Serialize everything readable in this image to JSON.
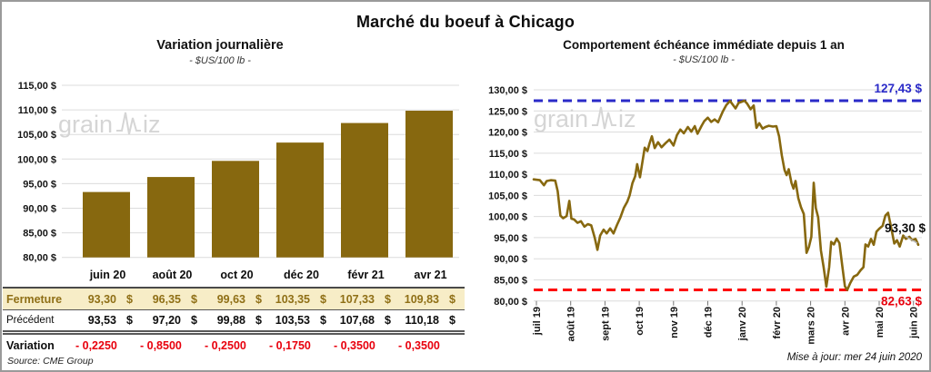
{
  "title": "Marché du boeuf à Chicago",
  "watermark": {
    "part1": "grain",
    "part2": "iz"
  },
  "colors": {
    "gold": "#87680f",
    "cream_bg": "#f7edc7",
    "fermeture_text": "#8f6f16",
    "variation_red": "#e8000d",
    "high_blue": "#2a2ac8",
    "low_red": "#fe0000",
    "grid": "#dcdcdc",
    "frame_border": "#9a9a9a",
    "watermark_gray": "#d5d5d5"
  },
  "chart_data": [
    {
      "type": "bar",
      "title": "Variation journalière",
      "subtitle": "- $US/100 lb -",
      "categories": [
        "juin 20",
        "août 20",
        "oct 20",
        "déc 20",
        "févr 21",
        "avr 21"
      ],
      "values": [
        93.3,
        96.35,
        99.63,
        103.35,
        107.33,
        109.83
      ],
      "ylim": [
        80,
        115
      ],
      "ytick_labels": [
        "115,00 $",
        "110,00 $",
        "105,00 $",
        "100,00 $",
        "95,00 $",
        "90,00 $",
        "85,00 $",
        "80,00 $"
      ],
      "grid": true,
      "legend": "none"
    },
    {
      "type": "line",
      "title": "Comportement échéance immédiate depuis 1 an",
      "subtitle": "- $US/100 lb -",
      "x_labels": [
        "juil 19",
        "août 19",
        "sept 19",
        "oct 19",
        "nov 19",
        "déc 19",
        "janv 20",
        "févr 20",
        "mars 20",
        "avr 20",
        "mai 20",
        "juin 20"
      ],
      "ylim": [
        80,
        130
      ],
      "ytick_labels": [
        "130,00 $",
        "125,00 $",
        "120,00 $",
        "115,00 $",
        "110,00 $",
        "105,00 $",
        "100,00 $",
        "95,00 $",
        "90,00 $",
        "85,00 $",
        "80,00 $"
      ],
      "high_line": {
        "value": 127.43,
        "label": "127,43 $"
      },
      "low_line": {
        "value": 82.63,
        "label": "82,63 $"
      },
      "last_point_label": {
        "value": 93.3,
        "label": "93,30 $"
      },
      "grid": true,
      "legend": "none",
      "points": [
        [
          -0.08,
          108.8
        ],
        [
          0.1,
          108.6
        ],
        [
          0.22,
          107.4
        ],
        [
          0.3,
          108.4
        ],
        [
          0.42,
          108.6
        ],
        [
          0.55,
          108.5
        ],
        [
          0.62,
          106.0
        ],
        [
          0.7,
          100.2
        ],
        [
          0.78,
          99.6
        ],
        [
          0.88,
          100.1
        ],
        [
          0.96,
          103.7
        ],
        [
          1.02,
          99.5
        ],
        [
          1.1,
          99.3
        ],
        [
          1.2,
          98.5
        ],
        [
          1.3,
          98.9
        ],
        [
          1.4,
          97.6
        ],
        [
          1.5,
          98.2
        ],
        [
          1.6,
          97.9
        ],
        [
          1.7,
          95.0
        ],
        [
          1.78,
          92.1
        ],
        [
          1.86,
          95.5
        ],
        [
          1.96,
          96.9
        ],
        [
          2.05,
          96.0
        ],
        [
          2.15,
          97.2
        ],
        [
          2.25,
          96.0
        ],
        [
          2.35,
          98.0
        ],
        [
          2.45,
          99.8
        ],
        [
          2.55,
          102.0
        ],
        [
          2.65,
          103.5
        ],
        [
          2.72,
          105.0
        ],
        [
          2.8,
          107.9
        ],
        [
          2.88,
          109.5
        ],
        [
          2.94,
          112.4
        ],
        [
          3.02,
          109.3
        ],
        [
          3.16,
          116.3
        ],
        [
          3.24,
          115.5
        ],
        [
          3.3,
          117.3
        ],
        [
          3.37,
          119.0
        ],
        [
          3.45,
          116.2
        ],
        [
          3.55,
          117.6
        ],
        [
          3.65,
          116.4
        ],
        [
          3.77,
          117.4
        ],
        [
          3.88,
          118.2
        ],
        [
          4.0,
          116.8
        ],
        [
          4.1,
          119.3
        ],
        [
          4.2,
          120.6
        ],
        [
          4.3,
          119.7
        ],
        [
          4.42,
          121.2
        ],
        [
          4.52,
          120.1
        ],
        [
          4.62,
          121.4
        ],
        [
          4.7,
          119.6
        ],
        [
          4.82,
          121.5
        ],
        [
          4.9,
          122.6
        ],
        [
          5.0,
          123.4
        ],
        [
          5.1,
          122.4
        ],
        [
          5.2,
          123.0
        ],
        [
          5.3,
          122.3
        ],
        [
          5.44,
          124.9
        ],
        [
          5.54,
          126.4
        ],
        [
          5.65,
          127.35
        ],
        [
          5.81,
          125.6
        ],
        [
          5.9,
          126.9
        ],
        [
          6.0,
          127.2
        ],
        [
          6.07,
          127.45
        ],
        [
          6.15,
          126.7
        ],
        [
          6.25,
          125.4
        ],
        [
          6.34,
          126.3
        ],
        [
          6.42,
          121.0
        ],
        [
          6.5,
          122.1
        ],
        [
          6.6,
          120.8
        ],
        [
          6.68,
          121.2
        ],
        [
          6.78,
          121.5
        ],
        [
          6.9,
          121.3
        ],
        [
          7.0,
          121.4
        ],
        [
          7.08,
          119.0
        ],
        [
          7.16,
          114.5
        ],
        [
          7.24,
          111.0
        ],
        [
          7.3,
          109.8
        ],
        [
          7.36,
          111.2
        ],
        [
          7.44,
          108.0
        ],
        [
          7.5,
          106.6
        ],
        [
          7.56,
          108.4
        ],
        [
          7.64,
          104.4
        ],
        [
          7.72,
          102.2
        ],
        [
          7.8,
          100.6
        ],
        [
          7.88,
          91.4
        ],
        [
          7.95,
          92.8
        ],
        [
          8.02,
          95.2
        ],
        [
          8.09,
          108.0
        ],
        [
          8.15,
          102.0
        ],
        [
          8.22,
          99.8
        ],
        [
          8.3,
          92.0
        ],
        [
          8.38,
          88.0
        ],
        [
          8.46,
          83.4
        ],
        [
          8.54,
          88.0
        ],
        [
          8.6,
          94.0
        ],
        [
          8.68,
          93.4
        ],
        [
          8.76,
          94.8
        ],
        [
          8.84,
          93.7
        ],
        [
          8.92,
          88.5
        ],
        [
          9.0,
          83.5
        ],
        [
          9.07,
          82.63
        ],
        [
          9.16,
          84.3
        ],
        [
          9.26,
          85.8
        ],
        [
          9.36,
          86.2
        ],
        [
          9.46,
          87.3
        ],
        [
          9.54,
          88.0
        ],
        [
          9.6,
          93.4
        ],
        [
          9.68,
          92.9
        ],
        [
          9.76,
          94.7
        ],
        [
          9.84,
          93.3
        ],
        [
          9.92,
          96.4
        ],
        [
          10.0,
          97.1
        ],
        [
          10.1,
          97.8
        ],
        [
          10.18,
          100.2
        ],
        [
          10.26,
          100.9
        ],
        [
          10.35,
          97.4
        ],
        [
          10.44,
          93.6
        ],
        [
          10.52,
          94.4
        ],
        [
          10.6,
          92.9
        ],
        [
          10.7,
          95.5
        ],
        [
          10.78,
          94.7
        ],
        [
          10.88,
          95.2
        ],
        [
          10.96,
          94.4
        ],
        [
          11.06,
          94.7
        ],
        [
          11.14,
          93.3
        ]
      ]
    }
  ],
  "table": {
    "columns": [
      "juin 20",
      "août 20",
      "oct 20",
      "déc 20",
      "févr 21",
      "avr 21"
    ],
    "rows": [
      {
        "label": "Fermeture",
        "style": "fermeture",
        "currency": "$",
        "values": [
          "93,30",
          "96,35",
          "99,63",
          "103,35",
          "107,33",
          "109,83"
        ]
      },
      {
        "label": "Précédent",
        "style": "precedent",
        "currency": "$",
        "values": [
          "93,53",
          "97,20",
          "99,88",
          "103,53",
          "107,68",
          "110,18"
        ]
      },
      {
        "label": "Variation",
        "style": "variation",
        "currency": "",
        "values": [
          "- 0,2250",
          "- 0,8500",
          "- 0,2500",
          "- 0,1750",
          "- 0,3500",
          "- 0,3500"
        ]
      }
    ]
  },
  "footer": {
    "source": "Source: CME Group",
    "updated": "Mise à jour: mer 24 juin 2020"
  }
}
